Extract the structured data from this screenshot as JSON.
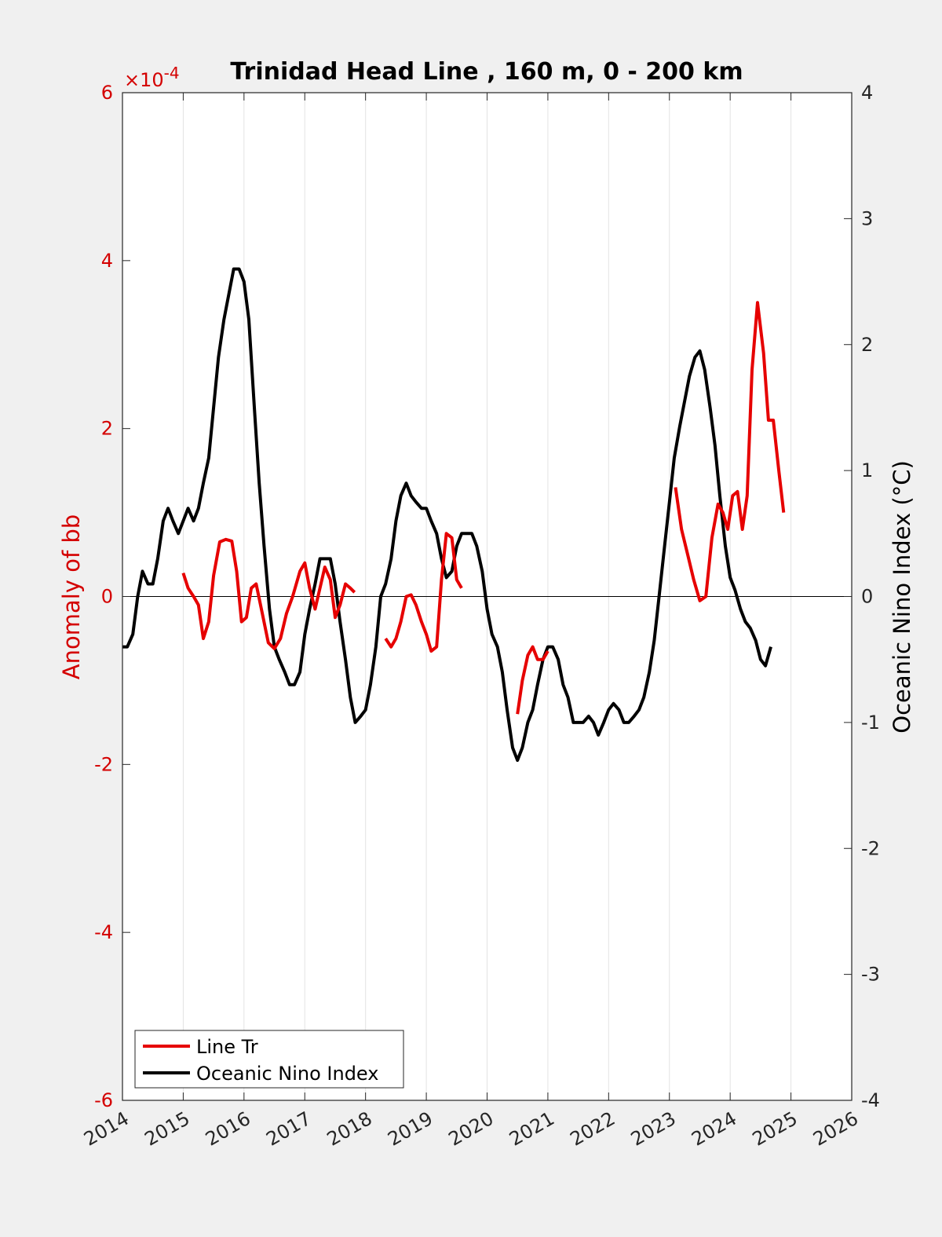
{
  "chart_data": {
    "type": "line",
    "title": "Trinidad Head Line , 160 m, 0 - 200 km",
    "ylabel_left": "Anomaly of bb",
    "ylabel_right": "Oceanic Nino Index (°C)",
    "left_axis_exponent": "×10",
    "left_axis_exponent_power": "-4",
    "xlim": [
      2014,
      2026
    ],
    "ylim_left": [
      -6,
      6
    ],
    "ylim_right": [
      -4,
      4
    ],
    "x_ticks": [
      "2014",
      "2015",
      "2016",
      "2017",
      "2018",
      "2019",
      "2020",
      "2021",
      "2022",
      "2023",
      "2024",
      "2025",
      "2026"
    ],
    "y_ticks_left": [
      "6",
      "4",
      "2",
      "0",
      "-2",
      "-4",
      "-6"
    ],
    "y_ticks_right": [
      "4",
      "3",
      "2",
      "1",
      "0",
      "-1",
      "-2",
      "-3",
      "-4"
    ],
    "grid": "vertical",
    "zero_line": true,
    "legend_position": "bottom-left",
    "colors": {
      "line_tr": "#e60000",
      "oni": "#000000",
      "left_axis": "#d40000"
    },
    "series": [
      {
        "name": "Line Tr",
        "axis": "left",
        "segments": [
          [
            [
              2015.0,
              0.28
            ],
            [
              2015.08,
              0.1
            ],
            [
              2015.17,
              0.0
            ],
            [
              2015.25,
              -0.1
            ],
            [
              2015.33,
              -0.5
            ],
            [
              2015.42,
              -0.3
            ],
            [
              2015.5,
              0.25
            ],
            [
              2015.6,
              0.65
            ],
            [
              2015.7,
              0.68
            ],
            [
              2015.8,
              0.66
            ],
            [
              2015.88,
              0.3
            ],
            [
              2015.96,
              -0.3
            ],
            [
              2016.04,
              -0.25
            ],
            [
              2016.12,
              0.1
            ],
            [
              2016.2,
              0.15
            ],
            [
              2016.3,
              -0.2
            ],
            [
              2016.4,
              -0.55
            ],
            [
              2016.5,
              -0.62
            ],
            [
              2016.6,
              -0.5
            ],
            [
              2016.7,
              -0.2
            ],
            [
              2016.8,
              0.0
            ],
            [
              2016.92,
              0.3
            ],
            [
              2017.0,
              0.4
            ],
            [
              2017.08,
              0.1
            ],
            [
              2017.17,
              -0.15
            ],
            [
              2017.25,
              0.1
            ],
            [
              2017.33,
              0.35
            ],
            [
              2017.42,
              0.2
            ],
            [
              2017.5,
              -0.25
            ],
            [
              2017.58,
              -0.1
            ],
            [
              2017.67,
              0.15
            ],
            [
              2017.75,
              0.1
            ],
            [
              2017.82,
              0.05
            ]
          ],
          [
            [
              2018.33,
              -0.5
            ],
            [
              2018.42,
              -0.6
            ],
            [
              2018.5,
              -0.5
            ],
            [
              2018.58,
              -0.3
            ],
            [
              2018.67,
              0.0
            ],
            [
              2018.75,
              0.02
            ],
            [
              2018.83,
              -0.1
            ],
            [
              2018.92,
              -0.3
            ],
            [
              2019.0,
              -0.45
            ],
            [
              2019.08,
              -0.65
            ],
            [
              2019.17,
              -0.6
            ],
            [
              2019.25,
              0.2
            ],
            [
              2019.33,
              0.75
            ],
            [
              2019.42,
              0.7
            ],
            [
              2019.5,
              0.2
            ],
            [
              2019.58,
              0.1
            ]
          ],
          [
            [
              2020.5,
              -1.4
            ],
            [
              2020.58,
              -1.0
            ],
            [
              2020.67,
              -0.7
            ],
            [
              2020.75,
              -0.6
            ],
            [
              2020.83,
              -0.75
            ],
            [
              2020.92,
              -0.75
            ],
            [
              2021.0,
              -0.65
            ]
          ],
          [
            [
              2023.1,
              1.3
            ],
            [
              2023.2,
              0.8
            ],
            [
              2023.3,
              0.5
            ],
            [
              2023.4,
              0.2
            ],
            [
              2023.5,
              -0.05
            ],
            [
              2023.6,
              0.0
            ],
            [
              2023.7,
              0.7
            ],
            [
              2023.8,
              1.1
            ],
            [
              2023.88,
              1.0
            ],
            [
              2023.96,
              0.8
            ],
            [
              2024.04,
              1.2
            ],
            [
              2024.12,
              1.25
            ],
            [
              2024.2,
              0.8
            ],
            [
              2024.28,
              1.2
            ],
            [
              2024.36,
              2.7
            ],
            [
              2024.45,
              3.5
            ],
            [
              2024.55,
              2.9
            ],
            [
              2024.63,
              2.1
            ],
            [
              2024.71,
              2.1
            ],
            [
              2024.8,
              1.5
            ],
            [
              2024.88,
              1.0
            ]
          ]
        ]
      },
      {
        "name": "Oceanic Nino Index",
        "axis": "right",
        "points": [
          [
            2014.0,
            -0.4
          ],
          [
            2014.08,
            -0.4
          ],
          [
            2014.17,
            -0.3
          ],
          [
            2014.25,
            0.0
          ],
          [
            2014.33,
            0.2
          ],
          [
            2014.42,
            0.1
          ],
          [
            2014.5,
            0.1
          ],
          [
            2014.58,
            0.3
          ],
          [
            2014.67,
            0.6
          ],
          [
            2014.75,
            0.7
          ],
          [
            2014.83,
            0.6
          ],
          [
            2014.92,
            0.5
          ],
          [
            2015.0,
            0.6
          ],
          [
            2015.08,
            0.7
          ],
          [
            2015.17,
            0.6
          ],
          [
            2015.25,
            0.7
          ],
          [
            2015.33,
            0.9
          ],
          [
            2015.42,
            1.1
          ],
          [
            2015.5,
            1.5
          ],
          [
            2015.58,
            1.9
          ],
          [
            2015.67,
            2.2
          ],
          [
            2015.75,
            2.4
          ],
          [
            2015.83,
            2.6
          ],
          [
            2015.92,
            2.6
          ],
          [
            2016.0,
            2.5
          ],
          [
            2016.08,
            2.2
          ],
          [
            2016.17,
            1.5
          ],
          [
            2016.25,
            0.9
          ],
          [
            2016.33,
            0.4
          ],
          [
            2016.42,
            -0.1
          ],
          [
            2016.5,
            -0.4
          ],
          [
            2016.58,
            -0.5
          ],
          [
            2016.67,
            -0.6
          ],
          [
            2016.75,
            -0.7
          ],
          [
            2016.83,
            -0.7
          ],
          [
            2016.92,
            -0.6
          ],
          [
            2017.0,
            -0.3
          ],
          [
            2017.08,
            -0.1
          ],
          [
            2017.17,
            0.1
          ],
          [
            2017.25,
            0.3
          ],
          [
            2017.33,
            0.3
          ],
          [
            2017.42,
            0.3
          ],
          [
            2017.5,
            0.1
          ],
          [
            2017.58,
            -0.2
          ],
          [
            2017.67,
            -0.5
          ],
          [
            2017.75,
            -0.8
          ],
          [
            2017.83,
            -1.0
          ],
          [
            2017.92,
            -0.95
          ],
          [
            2018.0,
            -0.9
          ],
          [
            2018.08,
            -0.7
          ],
          [
            2018.17,
            -0.4
          ],
          [
            2018.25,
            0.0
          ],
          [
            2018.33,
            0.1
          ],
          [
            2018.42,
            0.3
          ],
          [
            2018.5,
            0.6
          ],
          [
            2018.58,
            0.8
          ],
          [
            2018.67,
            0.9
          ],
          [
            2018.75,
            0.8
          ],
          [
            2018.83,
            0.75
          ],
          [
            2018.92,
            0.7
          ],
          [
            2019.0,
            0.7
          ],
          [
            2019.08,
            0.6
          ],
          [
            2019.17,
            0.5
          ],
          [
            2019.25,
            0.3
          ],
          [
            2019.33,
            0.15
          ],
          [
            2019.42,
            0.2
          ],
          [
            2019.5,
            0.4
          ],
          [
            2019.58,
            0.5
          ],
          [
            2019.67,
            0.5
          ],
          [
            2019.75,
            0.5
          ],
          [
            2019.83,
            0.4
          ],
          [
            2019.92,
            0.2
          ],
          [
            2020.0,
            -0.1
          ],
          [
            2020.08,
            -0.3
          ],
          [
            2020.17,
            -0.4
          ],
          [
            2020.25,
            -0.6
          ],
          [
            2020.33,
            -0.9
          ],
          [
            2020.42,
            -1.2
          ],
          [
            2020.5,
            -1.3
          ],
          [
            2020.58,
            -1.2
          ],
          [
            2020.67,
            -1.0
          ],
          [
            2020.75,
            -0.9
          ],
          [
            2020.83,
            -0.7
          ],
          [
            2020.92,
            -0.5
          ],
          [
            2021.0,
            -0.4
          ],
          [
            2021.08,
            -0.4
          ],
          [
            2021.17,
            -0.5
          ],
          [
            2021.25,
            -0.7
          ],
          [
            2021.33,
            -0.8
          ],
          [
            2021.42,
            -1.0
          ],
          [
            2021.5,
            -1.0
          ],
          [
            2021.58,
            -1.0
          ],
          [
            2021.67,
            -0.95
          ],
          [
            2021.75,
            -1.0
          ],
          [
            2021.83,
            -1.1
          ],
          [
            2021.92,
            -1.0
          ],
          [
            2022.0,
            -0.9
          ],
          [
            2022.08,
            -0.85
          ],
          [
            2022.17,
            -0.9
          ],
          [
            2022.25,
            -1.0
          ],
          [
            2022.33,
            -1.0
          ],
          [
            2022.42,
            -0.95
          ],
          [
            2022.5,
            -0.9
          ],
          [
            2022.58,
            -0.8
          ],
          [
            2022.67,
            -0.6
          ],
          [
            2022.75,
            -0.35
          ],
          [
            2022.83,
            0.0
          ],
          [
            2022.92,
            0.4
          ],
          [
            2023.0,
            0.75
          ],
          [
            2023.08,
            1.1
          ],
          [
            2023.17,
            1.35
          ],
          [
            2023.25,
            1.55
          ],
          [
            2023.33,
            1.75
          ],
          [
            2023.42,
            1.9
          ],
          [
            2023.5,
            1.95
          ],
          [
            2023.58,
            1.8
          ],
          [
            2023.67,
            1.5
          ],
          [
            2023.75,
            1.2
          ],
          [
            2023.83,
            0.8
          ],
          [
            2023.92,
            0.4
          ],
          [
            2024.0,
            0.15
          ],
          [
            2024.08,
            0.05
          ],
          [
            2024.17,
            -0.1
          ],
          [
            2024.25,
            -0.2
          ],
          [
            2024.33,
            -0.25
          ],
          [
            2024.42,
            -0.35
          ],
          [
            2024.5,
            -0.5
          ],
          [
            2024.58,
            -0.55
          ],
          [
            2024.67,
            -0.4
          ]
        ]
      }
    ]
  }
}
